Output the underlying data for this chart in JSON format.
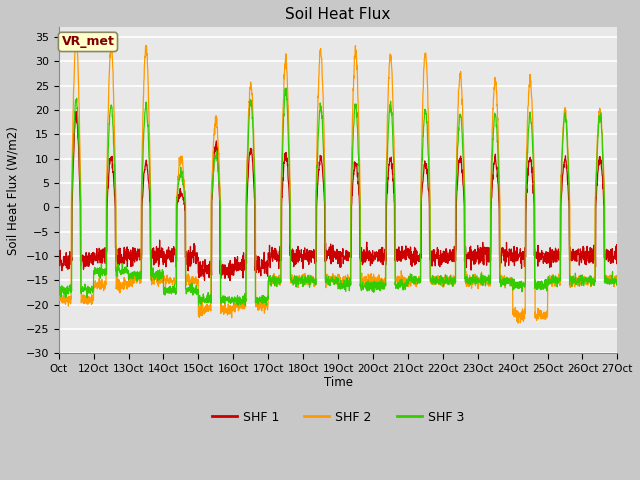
{
  "title": "Soil Heat Flux",
  "ylabel": "Soil Heat Flux (W/m2)",
  "xlabel": "Time",
  "ylim": [
    -30,
    37
  ],
  "yticks": [
    -30,
    -25,
    -20,
    -15,
    -10,
    -5,
    0,
    5,
    10,
    15,
    20,
    25,
    30,
    35
  ],
  "colors": {
    "SHF 1": "#cc0000",
    "SHF 2": "#ff9900",
    "SHF 3": "#33cc00"
  },
  "legend_label": "VR_met",
  "fig_bg": "#c8c8c8",
  "plot_bg": "#e8e8e8",
  "grid_color": "#ffffff",
  "n_days": 16,
  "pts_per_day": 144,
  "seed": 42,
  "start_day": 11,
  "end_day": 27
}
